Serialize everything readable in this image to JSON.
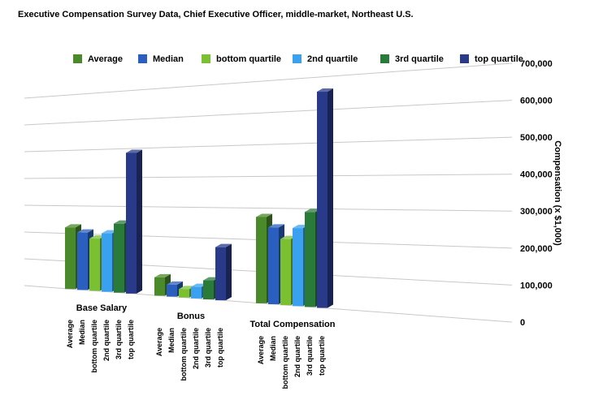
{
  "chart_data": {
    "type": "bar3d",
    "title": "Executive Compensation Survey Data, Chief Executive Officer, middle-market, Northeast U.S.",
    "y_axis_label": "Compensation (x $1,000)",
    "categories": [
      "Base Salary",
      "Bonus",
      "Total Compensation"
    ],
    "series": [
      {
        "name": "Average",
        "color": "#4a8a2a",
        "values": [
          222000,
          62000,
          272000
        ]
      },
      {
        "name": "Median",
        "color": "#2a5fc0",
        "values": [
          205000,
          40000,
          240000
        ]
      },
      {
        "name": "bottom quartile",
        "color": "#7ac030",
        "values": [
          185000,
          28000,
          205000
        ]
      },
      {
        "name": "2nd quartile",
        "color": "#3aa0f0",
        "values": [
          205000,
          38000,
          240000
        ]
      },
      {
        "name": "3rd quartile",
        "color": "#2a7a3a",
        "values": [
          240000,
          62000,
          290000
        ]
      },
      {
        "name": "top quartile",
        "color": "#2a3a8a",
        "values": [
          485000,
          172000,
          655000
        ]
      }
    ],
    "ylim": [
      0,
      700000
    ],
    "yticks": [
      0,
      {
        "value": 100000,
        "label": "100,000"
      },
      {
        "value": 200000,
        "label": "200,000"
      },
      {
        "value": 300000,
        "label": "300,000"
      },
      {
        "value": 400000,
        "label": "400,000"
      },
      {
        "value": 500000,
        "label": "500,000"
      },
      {
        "value": 600000,
        "label": "600,000"
      },
      {
        "value": 700000,
        "label": "700,000"
      }
    ],
    "grid": true,
    "legend": "top"
  }
}
